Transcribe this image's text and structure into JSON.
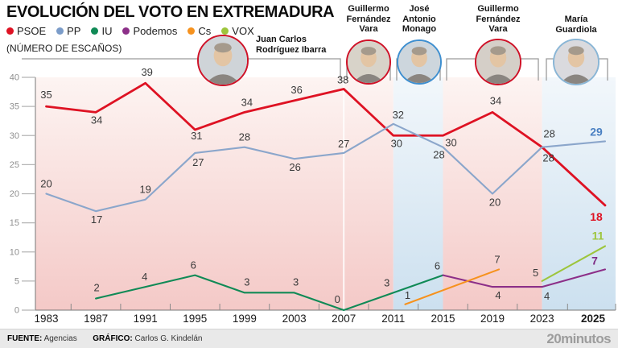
{
  "header": {
    "title": "EVOLUCIÓN DEL VOTO EN EXTREMADURA",
    "subtitle": "(NÚMERO DE ESCAÑOS)",
    "legend": [
      {
        "label": "PSOE",
        "color": "#de1223"
      },
      {
        "label": "PP",
        "color": "#7b9cc9"
      },
      {
        "label": "IU",
        "color": "#108a56"
      },
      {
        "label": "Podemos",
        "color": "#8c2f88"
      },
      {
        "label": "Cs",
        "color": "#f6921e"
      },
      {
        "label": "VOX",
        "color": "#9dc53c"
      }
    ]
  },
  "leaders": [
    {
      "name": "Juan Carlos Rodríguez Ibarra",
      "name_lines": [
        "Juan Carlos",
        "Rodríguez Ibarra"
      ],
      "party": "PSOE",
      "ring_color": "#cf1228",
      "term": [
        1983,
        2007
      ]
    },
    {
      "name": "Guillermo Fernández Vara",
      "name_lines": [
        "Guillermo",
        "Fernández",
        "Vara"
      ],
      "party": "PSOE",
      "ring_color": "#cf1228",
      "term": [
        2007,
        2011
      ]
    },
    {
      "name": "José Antonio Monago",
      "name_lines": [
        "José",
        "Antonio",
        "Monago"
      ],
      "party": "PP",
      "ring_color": "#3e8fd0",
      "term": [
        2011,
        2015
      ]
    },
    {
      "name": "Guillermo Fernández Vara",
      "name_lines": [
        "Guillermo",
        "Fernández",
        "Vara"
      ],
      "party": "PSOE",
      "ring_color": "#cf1228",
      "term": [
        2015,
        2023
      ]
    },
    {
      "name": "María Guardiola",
      "name_lines": [
        "María",
        "Guardiola"
      ],
      "party": "PP",
      "ring_color": "#8ab6d6",
      "term": [
        2023,
        2025
      ]
    }
  ],
  "chart_data": {
    "type": "line",
    "x": [
      1983,
      1987,
      1991,
      1995,
      1999,
      2003,
      2007,
      2011,
      2015,
      2019,
      2023,
      2025
    ],
    "ylim": [
      0,
      40
    ],
    "yticks": [
      0,
      5,
      10,
      15,
      20,
      25,
      30,
      35,
      40
    ],
    "grid": false,
    "series": [
      {
        "name": "PSOE",
        "color": "#de1223",
        "values": [
          35,
          34,
          39,
          31,
          34,
          36,
          38,
          30,
          30,
          34,
          28,
          18
        ]
      },
      {
        "name": "PP",
        "color": "#8ba6cb",
        "label_color": "#4a80c2",
        "values": [
          20,
          17,
          19,
          27,
          28,
          26,
          27,
          32,
          28,
          20,
          28,
          29
        ]
      },
      {
        "name": "IU",
        "color": "#108a56",
        "values": [
          null,
          2,
          4,
          6,
          3,
          3,
          0,
          3,
          6,
          null,
          null,
          null
        ]
      },
      {
        "name": "Podemos",
        "color": "#8c2f88",
        "label_color": "#7d2b84",
        "values": [
          null,
          null,
          null,
          null,
          null,
          null,
          null,
          null,
          6,
          4,
          4,
          7
        ]
      },
      {
        "name": "Cs",
        "color": "#f6921e",
        "values": [
          null,
          null,
          null,
          null,
          null,
          null,
          null,
          null,
          1,
          7,
          null,
          null
        ]
      },
      {
        "name": "VOX",
        "color": "#9dc53c",
        "values": [
          null,
          null,
          null,
          null,
          null,
          null,
          null,
          null,
          null,
          null,
          5,
          11
        ]
      }
    ],
    "government_bands": [
      {
        "from": 1983,
        "to": 2011,
        "party": "PSOE"
      },
      {
        "from": 2011,
        "to": 2015,
        "party": "PP"
      },
      {
        "from": 2015,
        "to": 2023,
        "party": "PSOE"
      },
      {
        "from": 2023,
        "to": 2025,
        "party": "PP"
      }
    ],
    "band_colors": {
      "PSOE": [
        "#fdf4f2",
        "#f4c9c7"
      ],
      "PP": [
        "#f2f7fb",
        "#cce0ef"
      ]
    },
    "final_year_bold_labels": {
      "PSOE": 18,
      "PP": 29,
      "VOX": 11,
      "Podemos": 7
    }
  },
  "footer": {
    "source_label": "FUENTE:",
    "source": "Agencias",
    "credit_label": "GRÁFICO:",
    "credit": "Carlos G. Kindelán",
    "brand": "20minutos"
  }
}
